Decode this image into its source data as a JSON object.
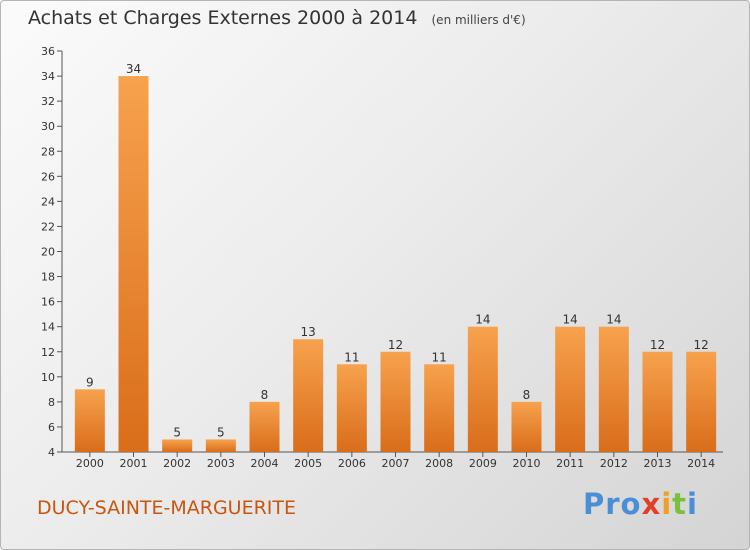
{
  "title": "Achats et Charges Externes 2000 à 2014",
  "unit": "(en milliers d'€)",
  "commune": "DUCY-SAINTE-MARGUERITE",
  "brand": {
    "p1": "Pro",
    "p2": "x",
    "p3": "i",
    "p4": "t",
    "p5": "i"
  },
  "colors": {
    "bar_light": "#f7a24e",
    "bar_dark": "#d96d1a",
    "commune_text": "#c8560f"
  },
  "chart_data": {
    "type": "bar",
    "categories": [
      "2000",
      "2001",
      "2002",
      "2003",
      "2004",
      "2005",
      "2006",
      "2007",
      "2008",
      "2009",
      "2010",
      "2011",
      "2012",
      "2013",
      "2014"
    ],
    "values": [
      9,
      34,
      5,
      5,
      8,
      13,
      11,
      12,
      11,
      14,
      8,
      14,
      14,
      12,
      12
    ],
    "ylim": [
      4,
      36
    ],
    "yticks": [
      4,
      6,
      8,
      10,
      12,
      14,
      16,
      18,
      20,
      22,
      24,
      26,
      28,
      30,
      32,
      34,
      36
    ],
    "grid": false
  }
}
